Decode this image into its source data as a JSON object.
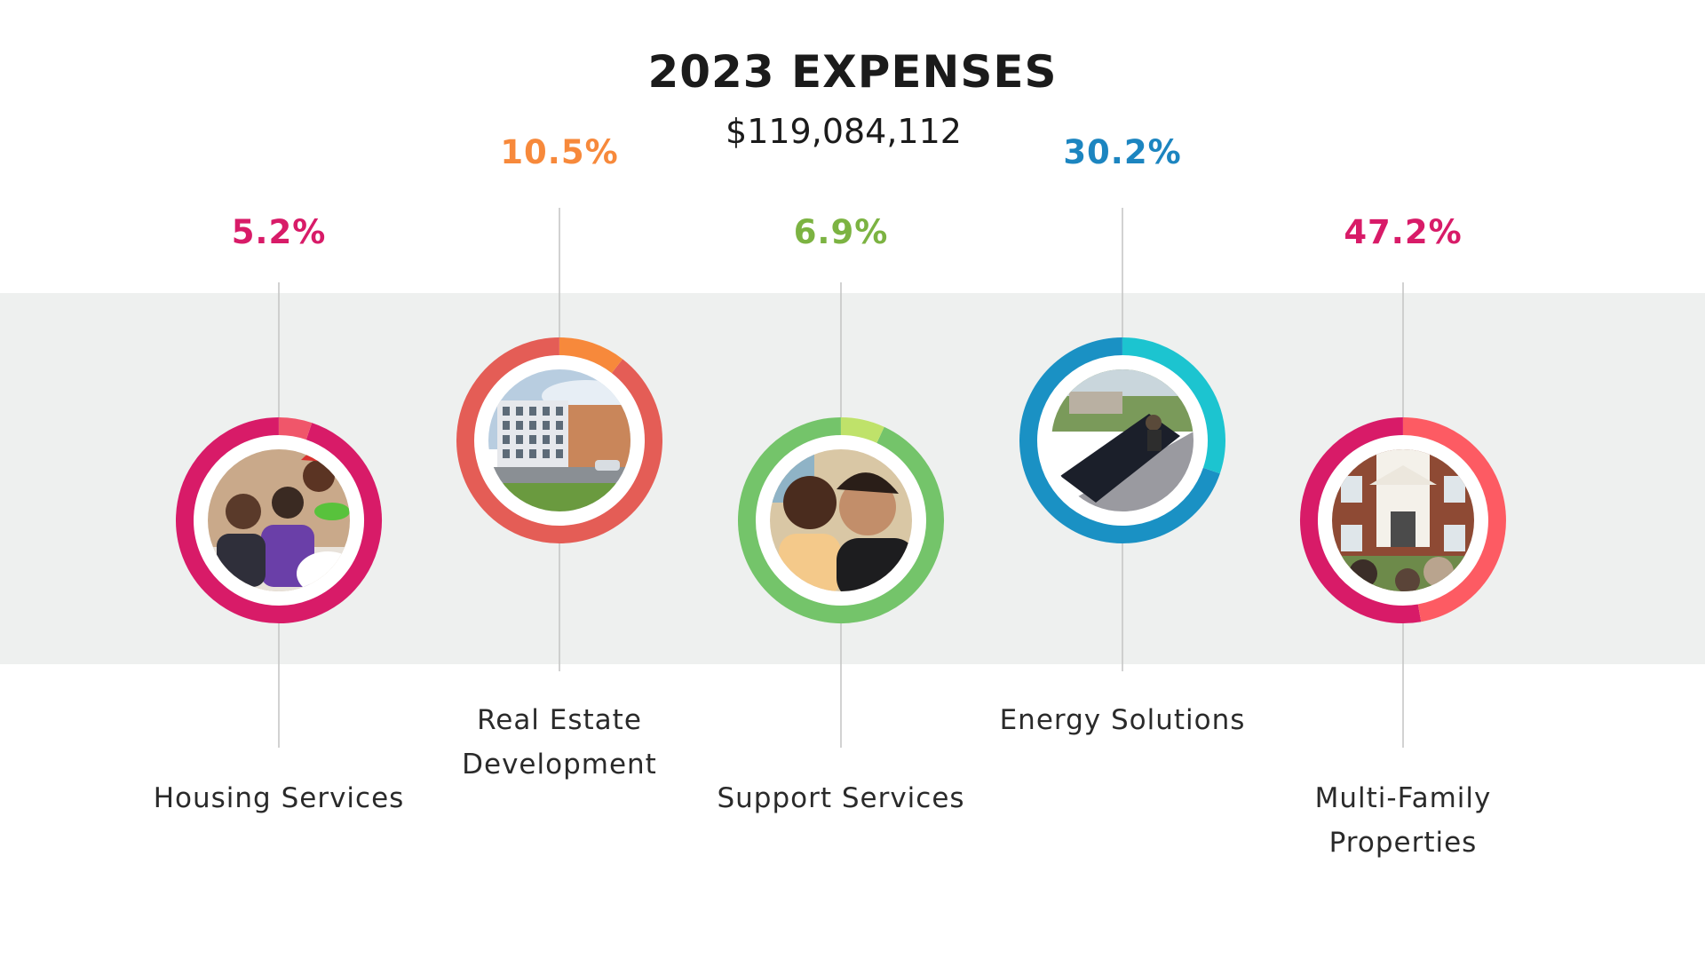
{
  "title": "2023 EXPENSES",
  "total": "$119,084,112",
  "colors": {
    "band": "#eef0ef",
    "connector": "#c4c4c4"
  },
  "chart_data": {
    "type": "pie",
    "title": "2023 EXPENSES",
    "subtitle": "$119,084,112",
    "unit": "%",
    "items": [
      {
        "label_lines": [
          "Housing Services"
        ],
        "value": 5.2,
        "value_label": "5.2%",
        "color_value": "#f0566a",
        "color_rest": "#d81b68",
        "label_color": "#d81b68",
        "photo_icon": "children-photo"
      },
      {
        "label_lines": [
          "Real Estate",
          "Development"
        ],
        "value": 10.5,
        "value_label": "10.5%",
        "color_value": "#f7893b",
        "color_rest": "#e45d56",
        "label_color": "#f7893b",
        "photo_icon": "apartment-building-photo"
      },
      {
        "label_lines": [
          "Support Services"
        ],
        "value": 6.9,
        "value_label": "6.9%",
        "color_value": "#bfe26a",
        "color_rest": "#74c46a",
        "label_color": "#7cb342",
        "photo_icon": "child-and-adult-photo"
      },
      {
        "label_lines": [
          "Energy Solutions"
        ],
        "value": 30.2,
        "value_label": "30.2%",
        "color_value": "#1cc4d0",
        "color_rest": "#1a91c4",
        "label_color": "#1c85c0",
        "photo_icon": "solar-panel-photo"
      },
      {
        "label_lines": [
          "Multi-Family",
          "Properties"
        ],
        "value": 47.2,
        "value_label": "47.2%",
        "color_value": "#fd5b63",
        "color_rest": "#d81b68",
        "label_color": "#d81b68",
        "photo_icon": "brick-building-photo"
      }
    ]
  }
}
